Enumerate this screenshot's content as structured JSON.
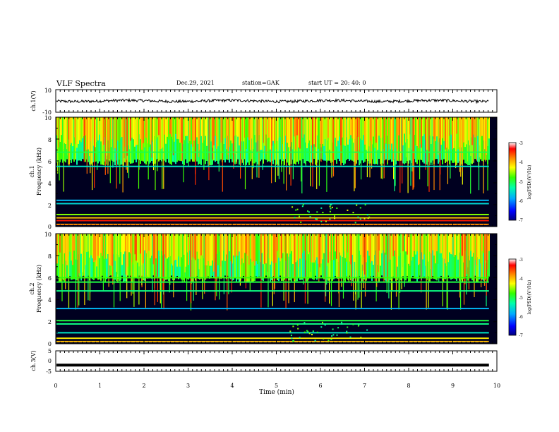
{
  "header": {
    "title": "VLF Spectra",
    "date": "Dec.29, 2021",
    "station": "station=GAK",
    "start": "start  UT  =   20: 40: 0"
  },
  "chart_data": [
    {
      "type": "line",
      "panel": "ch1",
      "ylabel": "ch.1(V)",
      "ytick_labels": [
        "10",
        "-10"
      ],
      "ylim": [
        -10,
        10
      ],
      "xlim": [
        0,
        10
      ],
      "data_until_min": 9.82,
      "mean_value": 0,
      "noise_amplitude": 1.2
    },
    {
      "type": "heatmap",
      "panel": "ch1-spectrogram",
      "ylabel": "ch.1\nFrequency (kHz)",
      "ylabel_line1": "ch.1",
      "ylabel_line2": "Frequency (kHz)",
      "ytick_labels": [
        "10",
        "8",
        "6",
        "4",
        "2",
        "0"
      ],
      "ylim": [
        0,
        10
      ],
      "xlim": [
        0,
        10
      ],
      "colorbar": {
        "label": "log(PSD)(V²/Hz)",
        "range": [
          -7,
          -3
        ],
        "tick_labels": [
          "-3",
          "-4",
          "-5",
          "-6",
          "-7"
        ],
        "colors": [
          "#000080",
          "#0000ff",
          "#00aaff",
          "#00ffaa",
          "#33ff00",
          "#ffff00",
          "#ff8800",
          "#ff0000",
          "#ffffff"
        ]
      },
      "bands_kHz": [
        {
          "f": 0.2,
          "v": -3.8
        },
        {
          "f": 0.55,
          "v": -3.4
        },
        {
          "f": 0.8,
          "v": -4.0
        },
        {
          "f": 1.1,
          "v": -4.6
        },
        {
          "f": 2.1,
          "v": -5.6
        },
        {
          "f": 2.4,
          "v": -5.8
        },
        {
          "f": 5.5,
          "v": -5.5
        },
        {
          "f": 6.8,
          "v": -5.0
        }
      ]
    },
    {
      "type": "heatmap",
      "panel": "ch2-spectrogram",
      "ylabel": "ch.2\nFrequency (kHz)",
      "ylabel_line1": "ch.2",
      "ylabel_line2": "Frequency (kHz)",
      "ytick_labels": [
        "10",
        "8",
        "6",
        "4",
        "2",
        "0"
      ],
      "ylim": [
        0,
        10
      ],
      "xlim": [
        0,
        10
      ],
      "colorbar": {
        "label": "log(PSD)(V²/Hz)",
        "range": [
          -7,
          -3
        ],
        "tick_labels": [
          "-3",
          "-4",
          "-5",
          "-6",
          "-7"
        ],
        "colors": [
          "#000080",
          "#0000ff",
          "#00aaff",
          "#00ffaa",
          "#33ff00",
          "#ffff00",
          "#ff8800",
          "#ff0000",
          "#ffffff"
        ]
      },
      "bands_kHz": [
        {
          "f": 0.2,
          "v": -4.0
        },
        {
          "f": 0.5,
          "v": -4.2
        },
        {
          "f": 1.0,
          "v": -5.5
        },
        {
          "f": 1.8,
          "v": -5.2
        },
        {
          "f": 2.1,
          "v": -5.0
        },
        {
          "f": 3.2,
          "v": -5.8
        },
        {
          "f": 4.8,
          "v": -5.2
        },
        {
          "f": 5.6,
          "v": -5.0
        },
        {
          "f": 6.0,
          "v": -4.8
        }
      ]
    },
    {
      "type": "line",
      "panel": "ch3",
      "ylabel": "ch.3(V)",
      "ytick_labels": [
        "5",
        "0",
        "-5"
      ],
      "ylim": [
        -5,
        5
      ],
      "xlim": [
        0,
        10
      ],
      "data_until_min": 9.82,
      "constant_value": -2.0,
      "xlabel": "Time (min)",
      "xtick_labels": [
        "0",
        "1",
        "2",
        "3",
        "4",
        "5",
        "6",
        "7",
        "8",
        "9",
        "10"
      ]
    }
  ]
}
